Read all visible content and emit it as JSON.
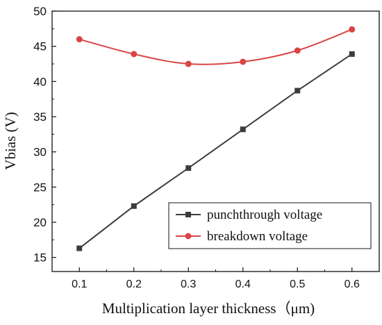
{
  "chart_data": {
    "type": "line",
    "xlabel": "Multiplication layer thickness（μm)",
    "ylabel": "Vbias (V)",
    "x": [
      0.1,
      0.2,
      0.3,
      0.4,
      0.5,
      0.6
    ],
    "x_ticks": [
      "0.1",
      "0.2",
      "0.3",
      "0.4",
      "0.5",
      "0.6"
    ],
    "y_ticks": [
      "15",
      "20",
      "25",
      "30",
      "35",
      "40",
      "45",
      "50"
    ],
    "xlim": [
      0.05,
      0.65
    ],
    "ylim": [
      13,
      50
    ],
    "grid": false,
    "legend_position": "bottom-right",
    "series": [
      {
        "name": "punchthrough voltage",
        "color": "#3c3c3c",
        "marker": "square",
        "values": [
          16.3,
          22.3,
          27.7,
          33.2,
          38.7,
          43.9
        ]
      },
      {
        "name": "breakdown voltage",
        "color": "#d94545",
        "marker": "circle",
        "values": [
          46.0,
          43.9,
          42.5,
          42.8,
          44.4,
          47.4
        ]
      }
    ]
  }
}
